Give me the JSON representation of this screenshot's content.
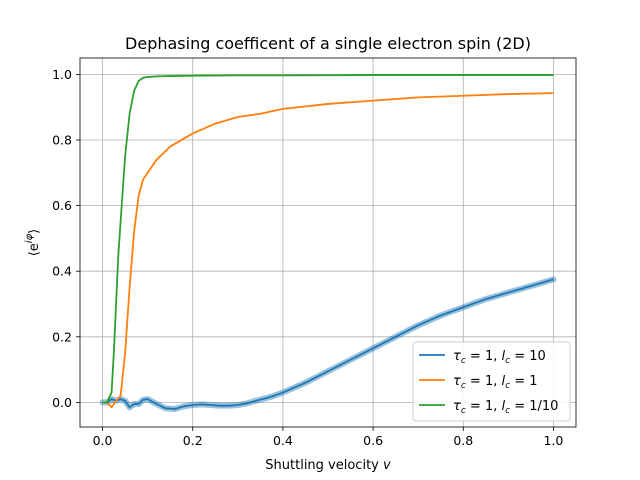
{
  "chart_data": {
    "type": "line",
    "title": "Dephasing coefficent of a single electron spin (2D)",
    "xlabel": "Shuttling velocity v",
    "ylabel": "⟨e^{iφ}⟩",
    "xlim": [
      -0.05,
      1.05
    ],
    "ylim": [
      -0.075,
      1.05
    ],
    "xticks": [
      0.0,
      0.2,
      0.4,
      0.6,
      0.8,
      1.0
    ],
    "xtick_labels": [
      "0.0",
      "0.2",
      "0.4",
      "0.6",
      "0.8",
      "1.0"
    ],
    "yticks": [
      0.0,
      0.2,
      0.4,
      0.6,
      0.8,
      1.0
    ],
    "ytick_labels": [
      "0.0",
      "0.2",
      "0.4",
      "0.6",
      "0.8",
      "1.0"
    ],
    "grid": true,
    "legend_position": "lower right",
    "series": [
      {
        "name": "τc = 1, lc = 10",
        "color": "#1f77b4",
        "band": true,
        "x": [
          0.0,
          0.01,
          0.02,
          0.03,
          0.04,
          0.05,
          0.06,
          0.07,
          0.08,
          0.09,
          0.1,
          0.12,
          0.14,
          0.16,
          0.18,
          0.2,
          0.22,
          0.24,
          0.26,
          0.28,
          0.3,
          0.32,
          0.34,
          0.36,
          0.38,
          0.4,
          0.45,
          0.5,
          0.55,
          0.6,
          0.65,
          0.7,
          0.75,
          0.8,
          0.85,
          0.9,
          0.95,
          1.0
        ],
        "y": [
          0.0,
          0.0,
          0.01,
          0.005,
          0.01,
          0.005,
          -0.015,
          -0.005,
          -0.005,
          0.008,
          0.01,
          -0.005,
          -0.018,
          -0.02,
          -0.012,
          -0.008,
          -0.006,
          -0.008,
          -0.01,
          -0.01,
          -0.008,
          -0.003,
          0.005,
          0.012,
          0.02,
          0.03,
          0.06,
          0.095,
          0.13,
          0.165,
          0.2,
          0.235,
          0.265,
          0.29,
          0.315,
          0.335,
          0.355,
          0.375
        ]
      },
      {
        "name": "τc = 1, lc = 1",
        "color": "#ff7f0e",
        "band": false,
        "x": [
          0.0,
          0.01,
          0.02,
          0.03,
          0.04,
          0.05,
          0.06,
          0.07,
          0.08,
          0.09,
          0.1,
          0.12,
          0.15,
          0.2,
          0.25,
          0.3,
          0.35,
          0.4,
          0.5,
          0.6,
          0.7,
          0.8,
          0.9,
          1.0
        ],
        "y": [
          0.0,
          0.0,
          -0.015,
          0.005,
          0.02,
          0.15,
          0.35,
          0.52,
          0.63,
          0.68,
          0.7,
          0.74,
          0.78,
          0.82,
          0.85,
          0.87,
          0.88,
          0.895,
          0.91,
          0.92,
          0.93,
          0.935,
          0.94,
          0.943
        ]
      },
      {
        "name": "τc = 1, lc = 1/10",
        "color": "#2ca02c",
        "band": false,
        "x": [
          0.0,
          0.01,
          0.02,
          0.025,
          0.03,
          0.035,
          0.04,
          0.05,
          0.06,
          0.07,
          0.08,
          0.09,
          0.1,
          0.12,
          0.15,
          0.2,
          0.3,
          0.4,
          0.6,
          0.8,
          1.0
        ],
        "y": [
          0.0,
          0.0,
          0.03,
          0.15,
          0.3,
          0.45,
          0.55,
          0.75,
          0.88,
          0.95,
          0.98,
          0.99,
          0.992,
          0.994,
          0.995,
          0.996,
          0.997,
          0.997,
          0.998,
          0.998,
          0.998
        ]
      }
    ]
  }
}
